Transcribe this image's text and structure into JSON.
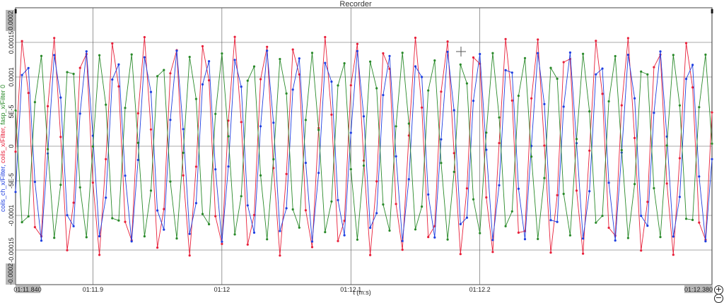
{
  "window": {
    "title": "Recorder"
  },
  "chart_data": {
    "type": "line",
    "title": "Recorder",
    "xlabel": "t (m:s)",
    "ylabel_parts": [
      {
        "text": "coils_ch_x/Filter, ",
        "color": "#1f3fe0"
      },
      {
        "text": "coils_x/Filter, ",
        "color": "#e8203a"
      },
      {
        "text": "fasp_x/Filter 0",
        "color": "#2a8a2a"
      }
    ],
    "x_unit": "seconds",
    "xlim": [
      71.84,
      72.38
    ],
    "ylim": [
      -0.0002,
      0.0002
    ],
    "ylim_labels": [
      "-0.0002",
      "0.0002"
    ],
    "xlim_labels": [
      "01:11.840",
      "01:12.380"
    ],
    "x_ticks": [
      {
        "value": 71.9,
        "label": "01:11.9"
      },
      {
        "value": 72.0,
        "label": "01:12"
      },
      {
        "value": 72.1,
        "label": "01:12.1"
      },
      {
        "value": 72.2,
        "label": "01:12.2"
      }
    ],
    "y_ticks": [
      {
        "value": 0.00015,
        "label": "0.00015"
      },
      {
        "value": 0.0001,
        "label": "0.0001"
      },
      {
        "value": 5e-05,
        "label": "5E-5"
      },
      {
        "value": 0,
        "label": "0"
      },
      {
        "value": -5e-05,
        "label": "-5E-5"
      },
      {
        "value": -0.0001,
        "label": "-0.0001"
      },
      {
        "value": -0.00015,
        "label": "-0.00015"
      }
    ],
    "grid": true,
    "cursors": [
      71.84,
      72.38
    ],
    "series": [
      {
        "name": "coils_x/Filter",
        "color": "#e8203a",
        "sample_start": 71.83,
        "sample_step": 0.005,
        "amplitude": 0.000158,
        "frequency_hz": 42.7,
        "phase_rad": -0.05
      },
      {
        "name": "coils_ch_x/Filter",
        "color": "#1f3fe0",
        "sample_start": 71.83,
        "sample_step": 0.005,
        "amplitude": 0.000138,
        "frequency_hz": 42.7,
        "phase_rad": -0.5
      },
      {
        "name": "fasp_x/Filter 0",
        "color": "#2a8a2a",
        "sample_start": 71.83,
        "sample_step": 0.005,
        "amplitude": 0.000135,
        "frequency_hz": 42.7,
        "phase_rad": 2.75
      }
    ]
  },
  "controls": {
    "zoom_in": "+",
    "zoom_out": "−"
  }
}
